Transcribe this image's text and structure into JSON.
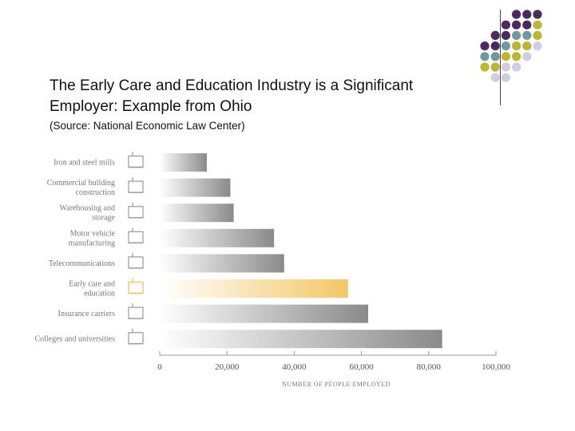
{
  "slide": {
    "title": "The Early Care and Education Industry is a Significant Employer: Example from Ohio",
    "source": "(Source: National Economic Law Center)"
  },
  "decoration": {
    "dot_colors": {
      "purple": "#4b2a5e",
      "teal": "#6f999c",
      "olive": "#b9b830",
      "lavender": "#d0cde0"
    }
  },
  "chart_data": {
    "type": "bar",
    "orientation": "horizontal",
    "categories": [
      "Iron and steel mills",
      "Commercial building construction",
      "Warehousing and storage",
      "Motor vehicle manufacturing",
      "Telecommunications",
      "Early care and education",
      "Insurance carriers",
      "Colleges and universities"
    ],
    "category_lines": [
      [
        "Iron and steel mills"
      ],
      [
        "Commercial building",
        "construction"
      ],
      [
        "Warehousing and",
        "storage"
      ],
      [
        "Motor vehicle",
        "manufacturing"
      ],
      [
        "Telecommunications"
      ],
      [
        "Early care and",
        "education"
      ],
      [
        "Insurance carriers"
      ],
      [
        "Colleges and universities"
      ]
    ],
    "icons": [
      "factory-icon",
      "crane-icon",
      "warehouse-icon",
      "car-icon",
      "telephone-pole-icon",
      "children-icon",
      "umbrella-icon",
      "college-building-icon"
    ],
    "values": [
      14000,
      21000,
      22000,
      34000,
      37000,
      56000,
      62000,
      84000
    ],
    "highlight_index": 5,
    "colors": {
      "bar": "#8a8a8a",
      "highlight": "#f3c766",
      "icon": "#999999",
      "highlight_icon": "#f0c24c"
    },
    "xlim": [
      0,
      100000
    ],
    "xticks": [
      0,
      20000,
      40000,
      60000,
      80000,
      100000
    ],
    "xtick_labels": [
      "0",
      "20,000",
      "40,000",
      "60,000",
      "80,000",
      "100,000"
    ],
    "xlabel": "NUMBER OF PEOPLE EMPLOYED",
    "ylabel": "",
    "grid": false
  }
}
